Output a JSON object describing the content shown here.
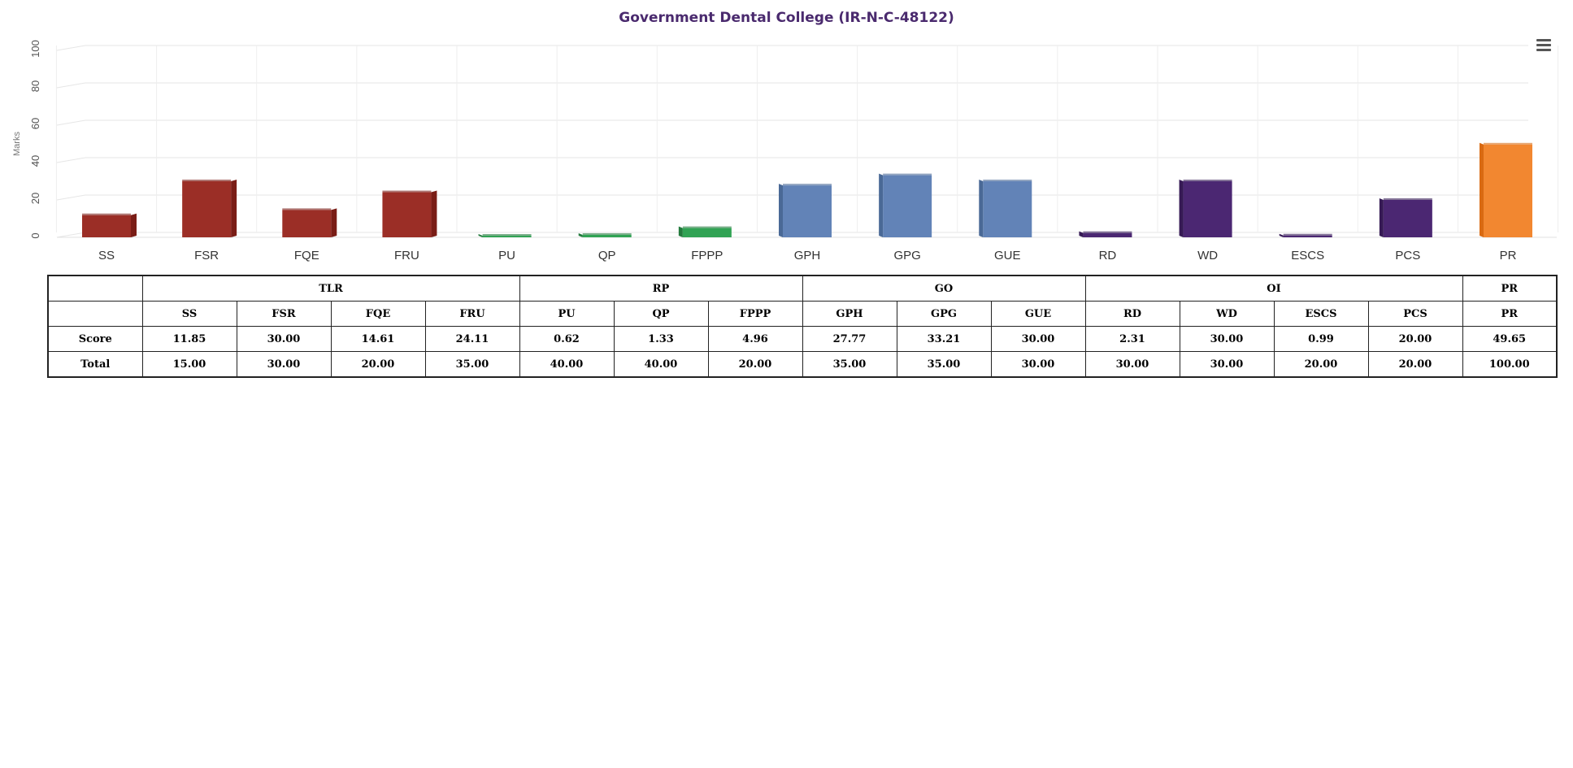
{
  "chart_data": {
    "type": "bar",
    "title": "Government Dental College (IR-N-C-48122)",
    "ylabel": "Marks",
    "xlabel": "",
    "ylim": [
      0,
      100
    ],
    "yticks": [
      0,
      20,
      40,
      60,
      80,
      100
    ],
    "grid": true,
    "categories": [
      "SS",
      "FSR",
      "FQE",
      "FRU",
      "PU",
      "QP",
      "FPPP",
      "GPH",
      "GPG",
      "GUE",
      "RD",
      "WD",
      "ESCS",
      "PCS",
      "PR"
    ],
    "values": [
      11.85,
      30.0,
      14.61,
      24.11,
      0.62,
      1.33,
      4.96,
      27.77,
      33.21,
      30.0,
      2.31,
      30.0,
      0.99,
      20.0,
      49.65
    ],
    "groups": [
      "TLR",
      "TLR",
      "TLR",
      "TLR",
      "RP",
      "RP",
      "RP",
      "GO",
      "GO",
      "GO",
      "OI",
      "OI",
      "OI",
      "OI",
      "PR"
    ],
    "group_colors": {
      "TLR": "#9b2e26",
      "RP": "#31a354",
      "GO": "#6283b7",
      "OI": "#4b2772",
      "PR": "#f28730"
    },
    "group_side_colors": {
      "TLR": "#7a1d16",
      "RP": "#237a3d",
      "GO": "#4a6996",
      "OI": "#361a55",
      "PR": "#d96a12"
    }
  },
  "menu": {
    "icon": "hamburger-menu-icon"
  },
  "table": {
    "groups": [
      {
        "label": "TLR",
        "span": 4
      },
      {
        "label": "RP",
        "span": 3
      },
      {
        "label": "GO",
        "span": 3
      },
      {
        "label": "OI",
        "span": 4
      },
      {
        "label": "PR",
        "span": 1
      }
    ],
    "columns": [
      "SS",
      "FSR",
      "FQE",
      "FRU",
      "PU",
      "QP",
      "FPPP",
      "GPH",
      "GPG",
      "GUE",
      "RD",
      "WD",
      "ESCS",
      "PCS",
      "PR"
    ],
    "rows": [
      {
        "label": "Score",
        "values": [
          "11.85",
          "30.00",
          "14.61",
          "24.11",
          "0.62",
          "1.33",
          "4.96",
          "27.77",
          "33.21",
          "30.00",
          "2.31",
          "30.00",
          "0.99",
          "20.00",
          "49.65"
        ]
      },
      {
        "label": "Total",
        "values": [
          "15.00",
          "30.00",
          "20.00",
          "35.00",
          "40.00",
          "40.00",
          "20.00",
          "35.00",
          "35.00",
          "30.00",
          "30.00",
          "30.00",
          "20.00",
          "20.00",
          "100.00"
        ]
      }
    ]
  }
}
